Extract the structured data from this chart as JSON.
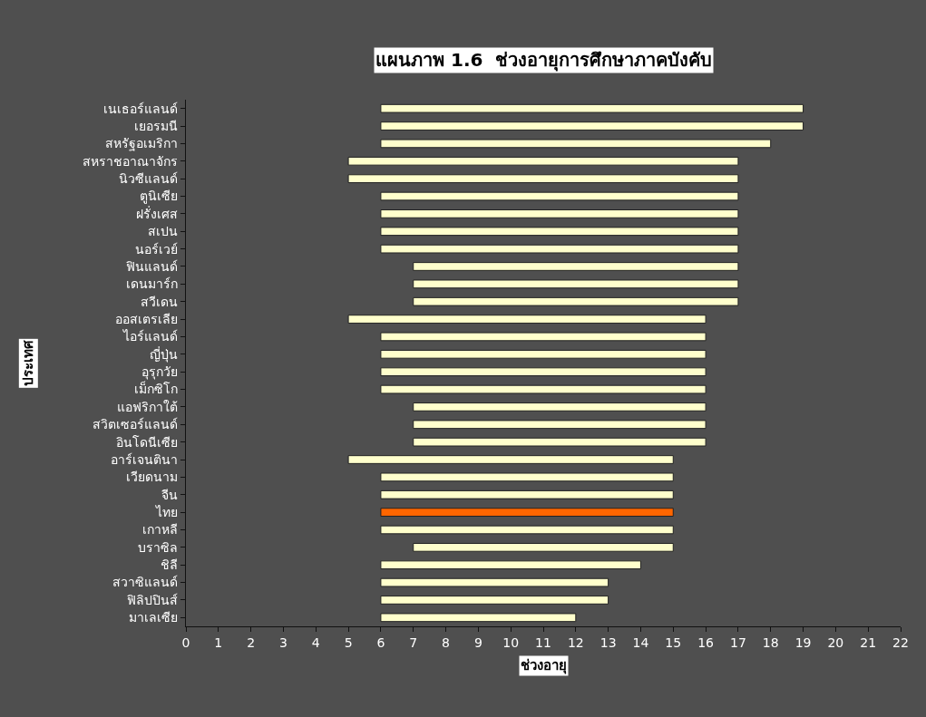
{
  "chart_data": {
    "type": "bar",
    "orientation": "horizontal",
    "title": "แผนภาพ 1.6  ช่วงอายุการศึกษาภาคบังคับ",
    "xlabel": "ช่วงอายุ",
    "ylabel": "ประเทศ",
    "categories": [
      "เนเธอร์แลนด์",
      "เยอรมนี",
      "สหรัฐอเมริกา",
      "สหราชอาณาจักร",
      "นิวซีแลนด์",
      "ตูนิเซีย",
      "ฝรั่งเศส",
      "สเปน",
      "นอร์เวย์",
      "ฟินแลนด์",
      "เดนมาร์ก",
      "สวีเดน",
      "ออสเตรเลีย",
      "ไอร์แลนด์",
      "ญี่ปุ่น",
      "อุรุกวัย",
      "เม็กซิโก",
      "แอฟริกาใต้",
      "สวิตเซอร์แลนด์",
      "อินโดนีเซีย",
      "อาร์เจนตินา",
      "เวียดนาม",
      "จีน",
      "ไทย",
      "เกาหลี",
      "บราซิล",
      "ชิลี",
      "สวาซิแลนด์",
      "ฟิลิปปินส์",
      "มาเลเซีย"
    ],
    "base": [
      6,
      6,
      6,
      5,
      5,
      6,
      6,
      6,
      6,
      7,
      7,
      7,
      5,
      6,
      6,
      6,
      6,
      7,
      7,
      7,
      5,
      6,
      6,
      6,
      6,
      7,
      6,
      6,
      6,
      6
    ],
    "values": [
      13,
      13,
      12,
      12,
      12,
      11,
      11,
      11,
      11,
      10,
      10,
      10,
      11,
      10,
      10,
      10,
      10,
      9,
      9,
      9,
      10,
      9,
      9,
      9,
      9,
      8,
      8,
      7,
      7,
      6
    ],
    "colors": [
      "#ffffcc",
      "#ffffcc",
      "#ffffcc",
      "#ffffcc",
      "#ffffcc",
      "#ffffcc",
      "#ffffcc",
      "#ffffcc",
      "#ffffcc",
      "#ffffcc",
      "#ffffcc",
      "#ffffcc",
      "#ffffcc",
      "#ffffcc",
      "#ffffcc",
      "#ffffcc",
      "#ffffcc",
      "#ffffcc",
      "#ffffcc",
      "#ffffcc",
      "#ffffcc",
      "#ffffcc",
      "#ffffcc",
      "#ff6600",
      "#ffffcc",
      "#ffffcc",
      "#ffffcc",
      "#ffffcc",
      "#ffffcc",
      "#ffffcc"
    ],
    "xlim": [
      0,
      22
    ],
    "xticks": [
      0,
      1,
      2,
      3,
      4,
      5,
      6,
      7,
      8,
      9,
      10,
      11,
      12,
      13,
      14,
      15,
      16,
      17,
      18,
      19,
      20,
      21,
      22
    ]
  }
}
